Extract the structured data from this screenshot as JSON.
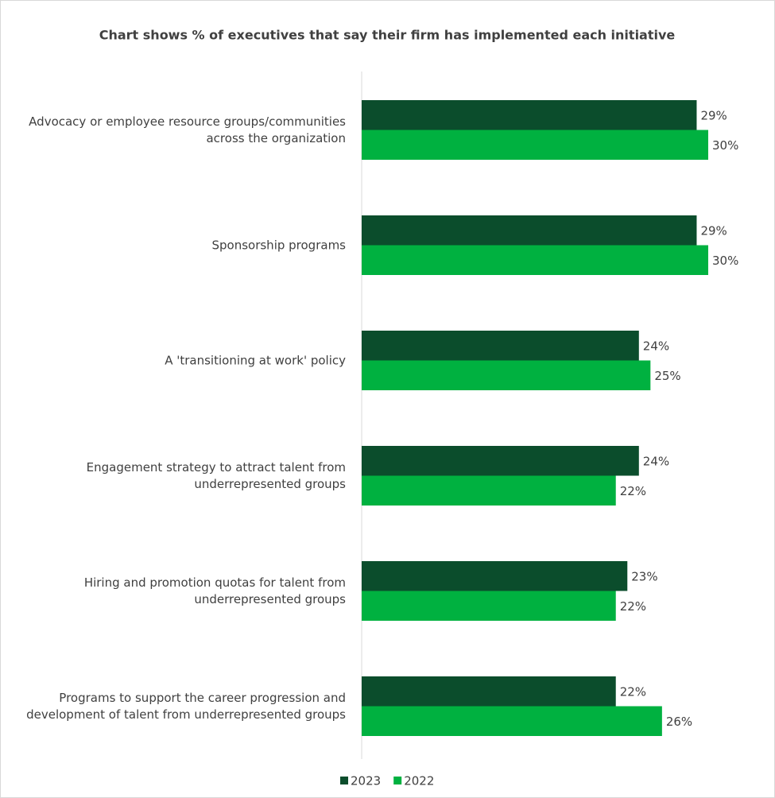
{
  "chart_data": {
    "type": "bar",
    "orientation": "horizontal",
    "title": "Chart shows % of executives that say their firm has implemented each initiative",
    "categories": [
      "Advocacy or employee resource groups/communities\nacross the organization",
      "Sponsorship programs",
      "A 'transitioning at work' policy",
      "Engagement strategy to attract talent from\nunderrepresented groups",
      "Hiring and promotion quotas for talent from\nunderrepresented groups",
      "Programs to support the career progression and\ndevelopment of talent from underrepresented groups"
    ],
    "series": [
      {
        "name": "2023",
        "color": "#0b4d2c",
        "values": [
          29,
          29,
          24,
          24,
          23,
          22
        ],
        "value_labels": [
          "29%",
          "29%",
          "24%",
          "24%",
          "23%",
          "22%"
        ]
      },
      {
        "name": "2022",
        "color": "#00b140",
        "values": [
          30,
          30,
          25,
          22,
          22,
          26
        ],
        "value_labels": [
          "30%",
          "30%",
          "25%",
          "22%",
          "22%",
          "26%"
        ]
      }
    ]
  }
}
